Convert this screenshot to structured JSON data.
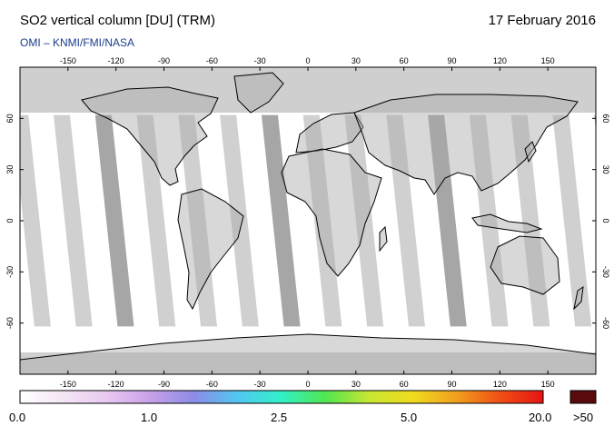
{
  "header": {
    "title": "SO2 vertical column [DU] (TRM)",
    "date": "17 February 2016",
    "credit": "OMI  –  KNMI/FMI/NASA"
  },
  "map": {
    "lon_ticks": [
      "-150",
      "-120",
      "-90",
      "-60",
      "-30",
      "0",
      "30",
      "60",
      "90",
      "120",
      "150"
    ],
    "lat_ticks": [
      "60",
      "30",
      "0",
      "-30",
      "-60"
    ],
    "lon_range": [
      -180,
      180
    ],
    "lat_range": [
      -90,
      90
    ]
  },
  "colorbar": {
    "labels": [
      "0.0",
      "1.0",
      "2.5",
      "5.0",
      "20.0"
    ],
    "overflow_label": ">50",
    "colors": [
      "#ffffff",
      "#f4e6f4",
      "#e8c8f0",
      "#c8a0e8",
      "#8c8ce8",
      "#50c8f0",
      "#32f0c8",
      "#50e650",
      "#c8e632",
      "#f0dc1e",
      "#f0a01e",
      "#f05014",
      "#e61414"
    ],
    "overflow_color": "#5a0a0a"
  }
}
